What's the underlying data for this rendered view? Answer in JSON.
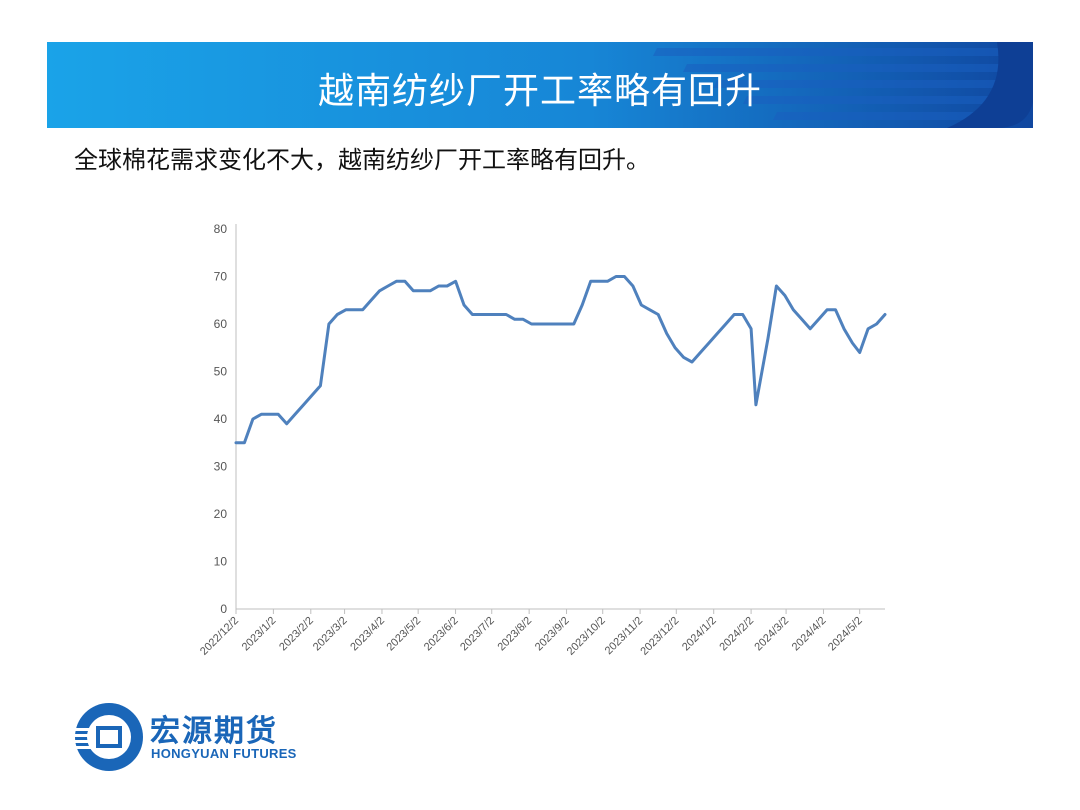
{
  "header": {
    "title": "越南纺纱厂开工率略有回升",
    "color_light": "#1aa3e8",
    "color_dark": "#1047a0"
  },
  "subtitle": "全球棉花需求变化不大，越南纺纱厂开工率略有回升。",
  "logo": {
    "name_cn": "宏源期货",
    "name_en": "HONGYUAN FUTURES",
    "color": "#1a66b8"
  },
  "chart_data": {
    "type": "line",
    "title": "",
    "xlabel": "",
    "ylabel": "",
    "ylim": [
      0,
      80
    ],
    "yticks": [
      0,
      10,
      20,
      30,
      40,
      50,
      60,
      70,
      80
    ],
    "grid": false,
    "legend": "none",
    "x_range": [
      "2022-12-02",
      "2024-05-23"
    ],
    "x_tick_dates": [
      "2022-12-02",
      "2023-01-02",
      "2023-02-02",
      "2023-03-02",
      "2023-04-02",
      "2023-05-02",
      "2023-06-02",
      "2023-07-02",
      "2023-08-02",
      "2023-09-02",
      "2023-10-02",
      "2023-11-02",
      "2023-12-02",
      "2024-01-02",
      "2024-02-02",
      "2024-03-02",
      "2024-04-02",
      "2024-05-02"
    ],
    "x_tick_labels": [
      "2022/12/2",
      "2023/1/2",
      "2023/2/2",
      "2023/3/2",
      "2023/4/2",
      "2023/5/2",
      "2023/6/2",
      "2023/7/2",
      "2023/8/2",
      "2023/9/2",
      "2023/10/2",
      "2023/11/2",
      "2023/12/2",
      "2024/1/2",
      "2024/2/2",
      "2024/3/2",
      "2024/4/2",
      "2024/5/2"
    ],
    "series": [
      {
        "color": "#4f81bd",
        "points": [
          [
            "2022-12-02",
            35
          ],
          [
            "2022-12-09",
            35
          ],
          [
            "2022-12-16",
            40
          ],
          [
            "2022-12-23",
            41
          ],
          [
            "2022-12-30",
            41
          ],
          [
            "2023-01-06",
            41
          ],
          [
            "2023-01-13",
            39
          ],
          [
            "2023-01-20",
            41
          ],
          [
            "2023-01-27",
            43
          ],
          [
            "2023-02-03",
            45
          ],
          [
            "2023-02-10",
            47
          ],
          [
            "2023-02-17",
            60
          ],
          [
            "2023-02-24",
            62
          ],
          [
            "2023-03-03",
            63
          ],
          [
            "2023-03-10",
            63
          ],
          [
            "2023-03-17",
            63
          ],
          [
            "2023-03-24",
            65
          ],
          [
            "2023-03-31",
            67
          ],
          [
            "2023-04-07",
            68
          ],
          [
            "2023-04-14",
            69
          ],
          [
            "2023-04-21",
            69
          ],
          [
            "2023-04-28",
            67
          ],
          [
            "2023-05-05",
            67
          ],
          [
            "2023-05-12",
            67
          ],
          [
            "2023-05-19",
            68
          ],
          [
            "2023-05-26",
            68
          ],
          [
            "2023-06-02",
            69
          ],
          [
            "2023-06-09",
            64
          ],
          [
            "2023-06-16",
            62
          ],
          [
            "2023-06-23",
            62
          ],
          [
            "2023-06-30",
            62
          ],
          [
            "2023-07-07",
            62
          ],
          [
            "2023-07-14",
            62
          ],
          [
            "2023-07-21",
            61
          ],
          [
            "2023-07-28",
            61
          ],
          [
            "2023-08-04",
            60
          ],
          [
            "2023-08-11",
            60
          ],
          [
            "2023-08-18",
            60
          ],
          [
            "2023-08-25",
            60
          ],
          [
            "2023-09-01",
            60
          ],
          [
            "2023-09-08",
            60
          ],
          [
            "2023-09-15",
            64
          ],
          [
            "2023-09-22",
            69
          ],
          [
            "2023-09-29",
            69
          ],
          [
            "2023-10-06",
            69
          ],
          [
            "2023-10-13",
            70
          ],
          [
            "2023-10-20",
            70
          ],
          [
            "2023-10-27",
            68
          ],
          [
            "2023-11-03",
            64
          ],
          [
            "2023-11-10",
            63
          ],
          [
            "2023-11-17",
            62
          ],
          [
            "2023-11-24",
            58
          ],
          [
            "2023-12-01",
            55
          ],
          [
            "2023-12-08",
            53
          ],
          [
            "2023-12-15",
            52
          ],
          [
            "2023-12-22",
            54
          ],
          [
            "2023-12-29",
            56
          ],
          [
            "2024-01-05",
            58
          ],
          [
            "2024-01-12",
            60
          ],
          [
            "2024-01-19",
            62
          ],
          [
            "2024-01-26",
            62
          ],
          [
            "2024-02-02",
            59
          ],
          [
            "2024-02-06",
            43
          ],
          [
            "2024-02-16",
            57
          ],
          [
            "2024-02-23",
            68
          ],
          [
            "2024-03-01",
            66
          ],
          [
            "2024-03-08",
            63
          ],
          [
            "2024-03-15",
            61
          ],
          [
            "2024-03-22",
            59
          ],
          [
            "2024-03-29",
            61
          ],
          [
            "2024-04-05",
            63
          ],
          [
            "2024-04-12",
            63
          ],
          [
            "2024-04-19",
            59
          ],
          [
            "2024-04-26",
            56
          ],
          [
            "2024-05-02",
            54
          ],
          [
            "2024-05-09",
            59
          ],
          [
            "2024-05-16",
            60
          ],
          [
            "2024-05-23",
            62
          ]
        ]
      }
    ]
  }
}
